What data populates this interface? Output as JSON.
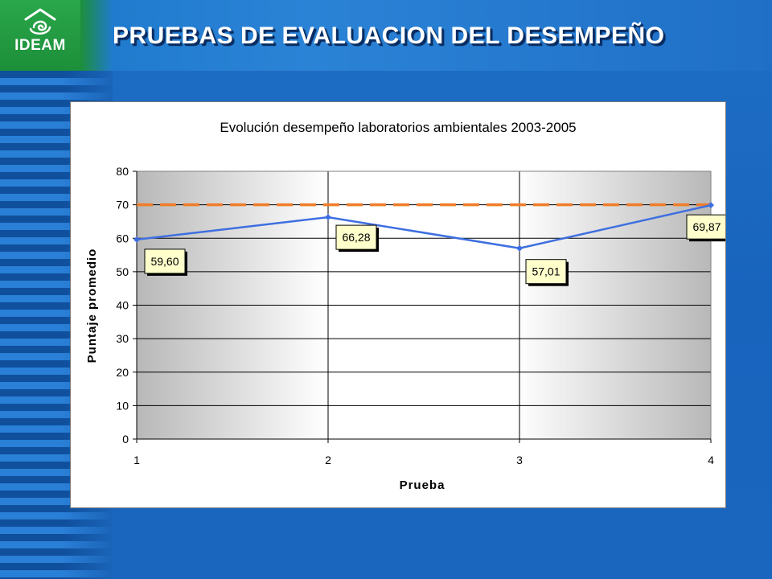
{
  "header": {
    "logo_text": "IDEAM",
    "title": "PRUEBAS DE EVALUACION DEL DESEMPEÑO"
  },
  "colors": {
    "series_line": "#3e6fe0",
    "reference_line": "#f07c2a",
    "label_fill": "#ffffcc"
  },
  "chart_data": {
    "type": "line",
    "title": "Evolución desempeño laboratorios ambientales 2003-2005",
    "xlabel": "Prueba",
    "ylabel": "Puntaje promedio",
    "x": [
      "1",
      "2",
      "3",
      "4"
    ],
    "y_ticks": [
      "0",
      "10",
      "20",
      "30",
      "40",
      "50",
      "60",
      "70",
      "80"
    ],
    "ylim": [
      0,
      80
    ],
    "grid": true,
    "series": [
      {
        "values": [
          59.6,
          66.28,
          57.01,
          69.87
        ],
        "data_labels": [
          "59,60",
          "66,28",
          "57,01",
          "69,87"
        ],
        "style": "solid-with-diamond-markers"
      }
    ],
    "reference_line": {
      "value": 70,
      "style": "dashed"
    }
  }
}
